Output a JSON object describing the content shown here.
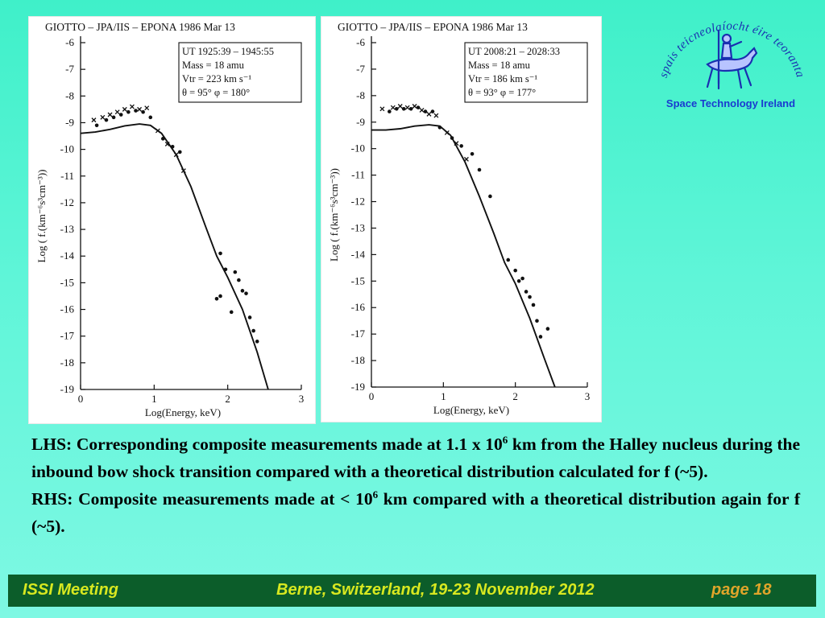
{
  "chart_data": [
    {
      "type": "scatter",
      "title": "GIOTTO – JPA/IIS – EPONA 1986 Mar 13",
      "xlabel": "Log(Energy, keV)",
      "ylabel": "Log ( f.(km⁻⁶s³cm⁻³))",
      "xlim": [
        0,
        3
      ],
      "ylim": [
        -19,
        -6
      ],
      "x_ticks": [
        "0",
        "1",
        "2",
        "3"
      ],
      "y_ticks": [
        "-6",
        "-7",
        "-8",
        "-9",
        "-10",
        "-11",
        "-12",
        "-13",
        "-14",
        "-15",
        "-16",
        "-17",
        "-18",
        "-19"
      ],
      "annotation": [
        "UT 1925:39 – 1945:55",
        "Mass = 18 amu",
        "Vtr = 223 km s⁻¹",
        "θ = 95°   φ = 180°"
      ],
      "series": [
        {
          "kind": "theoretical_curve",
          "x": [
            0.0,
            0.2,
            0.4,
            0.6,
            0.8,
            0.95,
            1.1,
            1.3,
            1.5,
            1.7,
            1.85,
            2.0,
            2.2,
            2.4,
            2.55
          ],
          "y": [
            -9.4,
            -9.35,
            -9.25,
            -9.12,
            -9.05,
            -9.1,
            -9.4,
            -10.2,
            -11.4,
            -12.9,
            -14.0,
            -14.8,
            -16.0,
            -17.6,
            -19.0
          ]
        },
        {
          "kind": "measured",
          "x": [
            0.18,
            0.22,
            0.3,
            0.35,
            0.4,
            0.45,
            0.5,
            0.55,
            0.6,
            0.65,
            0.7,
            0.75,
            0.8,
            0.85,
            0.9,
            0.95,
            1.05,
            1.12,
            1.18,
            1.25,
            1.3,
            1.35,
            1.4,
            1.9,
            1.97,
            1.85,
            1.9,
            2.1,
            2.15,
            2.2,
            2.05,
            2.25,
            2.3,
            2.35,
            2.4
          ],
          "y": [
            -8.9,
            -9.1,
            -8.8,
            -8.9,
            -8.7,
            -8.8,
            -8.6,
            -8.7,
            -8.5,
            -8.6,
            -8.4,
            -8.55,
            -8.5,
            -8.6,
            -8.45,
            -8.8,
            -9.3,
            -9.6,
            -9.8,
            -9.9,
            -10.2,
            -10.1,
            -10.8,
            -13.9,
            -14.5,
            -15.6,
            -15.5,
            -14.6,
            -14.9,
            -15.3,
            -16.1,
            -15.4,
            -16.3,
            -16.8,
            -17.2
          ]
        }
      ]
    },
    {
      "type": "scatter",
      "title": "GIOTTO – JPA/IIS – EPONA 1986 Mar 13",
      "xlabel": "Log(Energy, keV)",
      "ylabel": "Log ( f.(km⁻⁶s³cm⁻³))",
      "xlim": [
        0,
        3
      ],
      "ylim": [
        -19,
        -6
      ],
      "x_ticks": [
        "0",
        "1",
        "2",
        "3"
      ],
      "y_ticks": [
        "-6",
        "-7",
        "-8",
        "-9",
        "-10",
        "-11",
        "-12",
        "-13",
        "-14",
        "-15",
        "-16",
        "-17",
        "-18",
        "-19"
      ],
      "annotation": [
        "UT 2008:21 – 2028:33",
        "Mass = 18 amu",
        "Vtr = 186 km s⁻¹",
        "θ = 93°   φ = 177°"
      ],
      "series": [
        {
          "kind": "theoretical_curve",
          "x": [
            0.0,
            0.2,
            0.4,
            0.6,
            0.8,
            0.95,
            1.1,
            1.3,
            1.5,
            1.7,
            1.85,
            2.0,
            2.2,
            2.4,
            2.55
          ],
          "y": [
            -9.3,
            -9.3,
            -9.25,
            -9.15,
            -9.1,
            -9.15,
            -9.5,
            -10.5,
            -11.8,
            -13.2,
            -14.3,
            -15.1,
            -16.4,
            -17.9,
            -19.0
          ]
        },
        {
          "kind": "measured",
          "x": [
            0.15,
            0.25,
            0.3,
            0.35,
            0.4,
            0.45,
            0.5,
            0.55,
            0.6,
            0.65,
            0.7,
            0.75,
            0.8,
            0.85,
            0.9,
            0.95,
            1.05,
            1.12,
            1.18,
            1.25,
            1.32,
            1.4,
            1.5,
            1.65,
            1.9,
            2.0,
            2.05,
            2.1,
            2.15,
            2.2,
            2.25,
            2.3,
            2.35,
            2.45
          ],
          "y": [
            -8.5,
            -8.6,
            -8.45,
            -8.5,
            -8.4,
            -8.5,
            -8.45,
            -8.5,
            -8.4,
            -8.45,
            -8.55,
            -8.6,
            -8.7,
            -8.6,
            -8.75,
            -9.2,
            -9.4,
            -9.6,
            -9.8,
            -9.9,
            -10.4,
            -10.2,
            -10.8,
            -11.8,
            -14.2,
            -14.6,
            -15.0,
            -14.9,
            -15.4,
            -15.6,
            -15.9,
            -16.5,
            -17.1,
            -16.8
          ]
        }
      ]
    }
  ],
  "logo": {
    "arc_text": "spais teicneolaíocht éire teoranta",
    "caption": "Space Technology Ireland"
  },
  "caption": {
    "lhs_a": "LHS: Corresponding composite measurements made at 1.1 x 10",
    "lhs_exp": "6",
    "lhs_b": " km from the Halley nucleus during the inbound bow shock transition compared with a theoretical distribution calculated for f (~5).",
    "rhs_a": "RHS: Composite measurements made at < 10",
    "rhs_exp": "6",
    "rhs_b": " km compared with a theoretical distribution again for f (~5)."
  },
  "footer": {
    "meeting": "ISSI Meeting",
    "place": "Berne,  Switzerland,  19-23 November  2012",
    "page": "page  18"
  },
  "colors": {
    "background": "#5ff5d8",
    "footer_bg": "#0c5d2a",
    "footer_text": "#d8e820",
    "footer_page": "#e0a52a",
    "logo_blue": "#1a2fb0"
  }
}
